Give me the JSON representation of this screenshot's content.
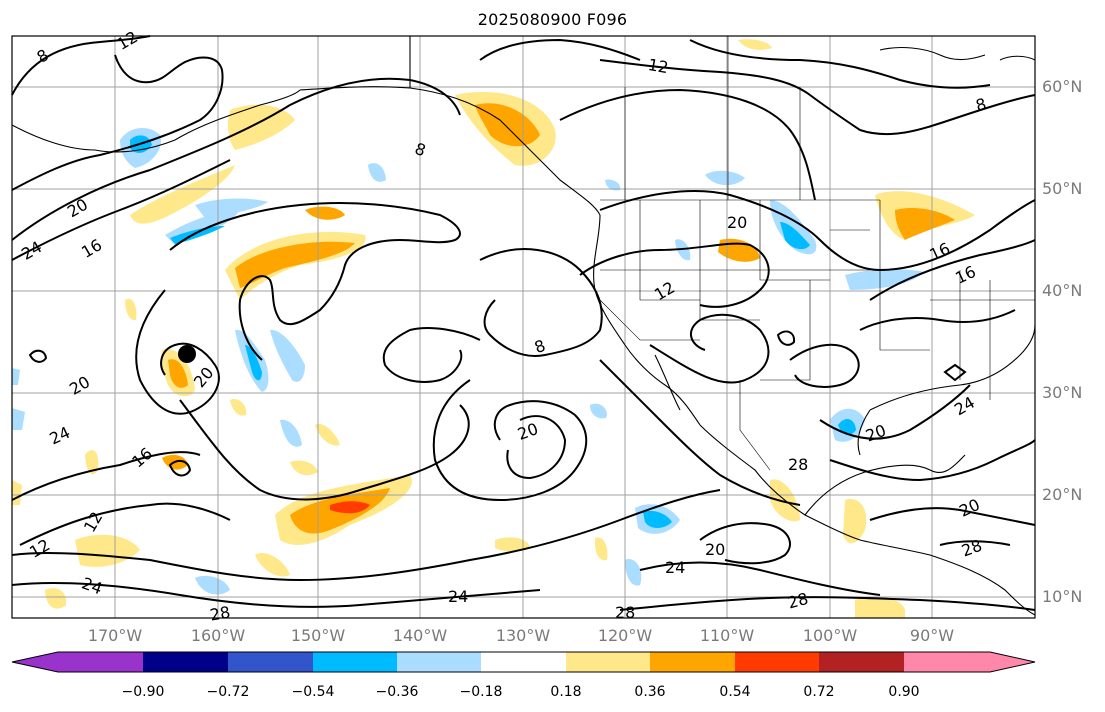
{
  "title": "2025080900 F096",
  "lat_labels": [
    "60°N",
    "50°N",
    "40°N",
    "30°N",
    "20°N",
    "10°N"
  ],
  "lon_labels": [
    "170°W",
    "160°W",
    "150°W",
    "140°W",
    "130°W",
    "120°W",
    "110°W",
    "100°W",
    "90°W"
  ],
  "contour_labels": [
    "8",
    "12",
    "8",
    "20",
    "24",
    "16",
    "8",
    "12",
    "12",
    "20",
    "8",
    "16",
    "16",
    "20",
    "20",
    "24",
    "16",
    "12",
    "12",
    "24",
    "28",
    "20",
    "20",
    "24",
    "28",
    "20",
    "24",
    "20",
    "28",
    "24",
    "28",
    "28"
  ],
  "colorbar": {
    "ticks": [
      "−0.90",
      "−0.72",
      "−0.54",
      "−0.36",
      "−0.18",
      "0.18",
      "0.36",
      "0.54",
      "0.72",
      "0.90"
    ],
    "colors": [
      "#9933cc",
      "#000088",
      "#3355cc",
      "#00bbff",
      "#aaddff",
      "#ffffff",
      "#ffe88a",
      "#ffa500",
      "#ff3b00",
      "#b22222",
      "#ff88aa"
    ]
  },
  "marker": "black-dot"
}
